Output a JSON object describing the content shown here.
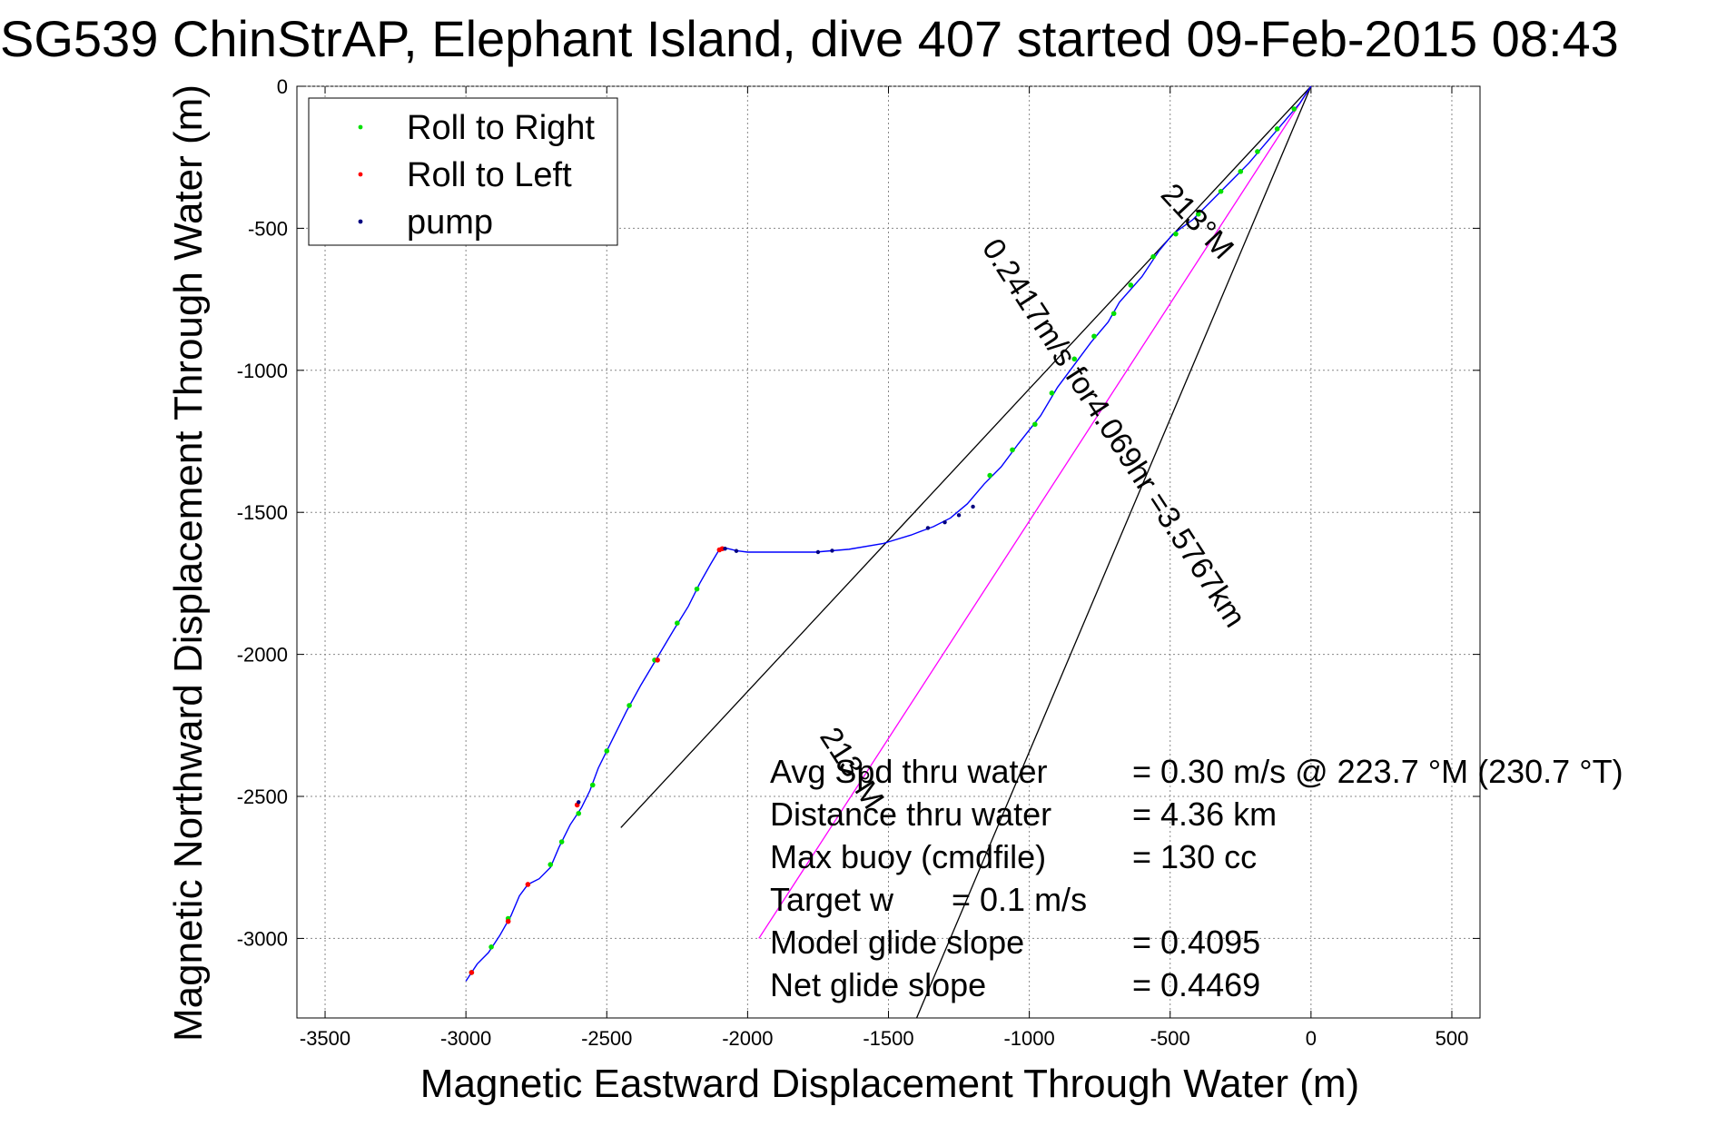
{
  "chart_data": {
    "type": "line",
    "title": "SG539 ChinStrAP, Elephant Island, dive 407 started 09-Feb-2015 08:43",
    "xlabel": "Magnetic Eastward Displacement Through Water (m)",
    "ylabel": "Magnetic Northward Displacement Through Water (m)",
    "xlim": [
      -3600,
      600
    ],
    "ylim": [
      -3280,
      0
    ],
    "xticks": [
      -3500,
      -3000,
      -2500,
      -2000,
      -1500,
      -1000,
      -500,
      0,
      500
    ],
    "yticks": [
      0,
      -500,
      -1000,
      -1500,
      -2000,
      -2500,
      -3000
    ],
    "grid": true,
    "legend": {
      "placement": "top-left",
      "entries": [
        {
          "label": "Roll to Right",
          "color": "#00e000"
        },
        {
          "label": "Roll to Left",
          "color": "#ff0000"
        },
        {
          "label": "pump",
          "color": "#000080"
        }
      ]
    },
    "track": {
      "color": "#0000ff",
      "points": [
        [
          0,
          0
        ],
        [
          -40,
          -60
        ],
        [
          -100,
          -130
        ],
        [
          -160,
          -200
        ],
        [
          -220,
          -270
        ],
        [
          -280,
          -330
        ],
        [
          -350,
          -400
        ],
        [
          -420,
          -470
        ],
        [
          -490,
          -520
        ],
        [
          -540,
          -580
        ],
        [
          -600,
          -670
        ],
        [
          -680,
          -760
        ],
        [
          -720,
          -830
        ],
        [
          -780,
          -900
        ],
        [
          -840,
          -980
        ],
        [
          -900,
          -1060
        ],
        [
          -960,
          -1160
        ],
        [
          -1040,
          -1260
        ],
        [
          -1100,
          -1340
        ],
        [
          -1160,
          -1400
        ],
        [
          -1220,
          -1470
        ],
        [
          -1280,
          -1520
        ],
        [
          -1340,
          -1550
        ],
        [
          -1420,
          -1580
        ],
        [
          -1520,
          -1610
        ],
        [
          -1640,
          -1630
        ],
        [
          -1760,
          -1640
        ],
        [
          -1900,
          -1640
        ],
        [
          -2000,
          -1640
        ],
        [
          -2040,
          -1635
        ],
        [
          -2080,
          -1625
        ],
        [
          -2100,
          -1630
        ],
        [
          -2130,
          -1680
        ],
        [
          -2170,
          -1750
        ],
        [
          -2210,
          -1830
        ],
        [
          -2260,
          -1910
        ],
        [
          -2320,
          -2010
        ],
        [
          -2380,
          -2110
        ],
        [
          -2430,
          -2200
        ],
        [
          -2480,
          -2300
        ],
        [
          -2530,
          -2400
        ],
        [
          -2560,
          -2480
        ],
        [
          -2590,
          -2540
        ],
        [
          -2630,
          -2600
        ],
        [
          -2670,
          -2680
        ],
        [
          -2700,
          -2750
        ],
        [
          -2740,
          -2790
        ],
        [
          -2780,
          -2810
        ],
        [
          -2810,
          -2850
        ],
        [
          -2840,
          -2920
        ],
        [
          -2880,
          -2990
        ],
        [
          -2920,
          -3050
        ],
        [
          -2960,
          -3090
        ],
        [
          -3000,
          -3150
        ]
      ]
    },
    "roll_right_points": [
      [
        -60,
        -80
      ],
      [
        -120,
        -150
      ],
      [
        -190,
        -230
      ],
      [
        -250,
        -300
      ],
      [
        -320,
        -370
      ],
      [
        -400,
        -450
      ],
      [
        -480,
        -520
      ],
      [
        -560,
        -600
      ],
      [
        -640,
        -700
      ],
      [
        -700,
        -800
      ],
      [
        -770,
        -880
      ],
      [
        -840,
        -960
      ],
      [
        -920,
        -1080
      ],
      [
        -980,
        -1190
      ],
      [
        -1060,
        -1280
      ],
      [
        -1140,
        -1370
      ],
      [
        -2180,
        -1770
      ],
      [
        -2250,
        -1890
      ],
      [
        -2330,
        -2020
      ],
      [
        -2420,
        -2180
      ],
      [
        -2500,
        -2340
      ],
      [
        -2550,
        -2460
      ],
      [
        -2600,
        -2560
      ],
      [
        -2660,
        -2660
      ],
      [
        -2700,
        -2740
      ],
      [
        -2850,
        -2930
      ],
      [
        -2910,
        -3030
      ],
      [
        -2980,
        -3120
      ]
    ],
    "roll_left_points": [
      [
        -2090,
        -1628
      ],
      [
        -2100,
        -1632
      ],
      [
        -2320,
        -2020
      ],
      [
        -2605,
        -2530
      ],
      [
        -2780,
        -2810
      ],
      [
        -2850,
        -2940
      ],
      [
        -2980,
        -3120
      ]
    ],
    "pump_points": [
      [
        -1200,
        -1480
      ],
      [
        -1250,
        -1510
      ],
      [
        -1300,
        -1535
      ],
      [
        -1360,
        -1555
      ],
      [
        -1700,
        -1635
      ],
      [
        -1750,
        -1640
      ],
      [
        -2040,
        -1636
      ],
      [
        -2080,
        -1628
      ],
      [
        -2600,
        -2520
      ]
    ],
    "reference_lines": [
      {
        "color": "#000000",
        "points": [
          [
            0,
            0
          ],
          [
            -2450,
            -2610
          ]
        ]
      },
      {
        "color": "#000000",
        "points": [
          [
            0,
            0
          ],
          [
            -1400,
            -3280
          ]
        ]
      },
      {
        "color": "#ff00ff",
        "points": [
          [
            0,
            0
          ],
          [
            -1960,
            -3000
          ]
        ]
      }
    ],
    "annotations": [
      {
        "text": "213°M",
        "x": -430,
        "y": -500,
        "angle": 47
      },
      {
        "text": "0.2417m/s for4.069hr =3.5767km",
        "x": -730,
        "y": -1240,
        "angle": 57
      },
      {
        "text": "213°M",
        "x": -1660,
        "y": -2420,
        "angle": 57
      }
    ],
    "stats": [
      {
        "label": "Avg Spd thru water",
        "value": "=  0.30 m/s @ 223.7 °M (230.7 °T)"
      },
      {
        "label": "Distance thru water",
        "value": "=  4.36 km"
      },
      {
        "label": "Max buoy (cmdfile)",
        "value": "= 130 cc"
      },
      {
        "label": "Target w",
        "value": "= 0.1 m/s"
      },
      {
        "label": "Model glide slope",
        "value": "= 0.4095"
      },
      {
        "label": "Net glide slope",
        "value": "= 0.4469"
      }
    ]
  }
}
